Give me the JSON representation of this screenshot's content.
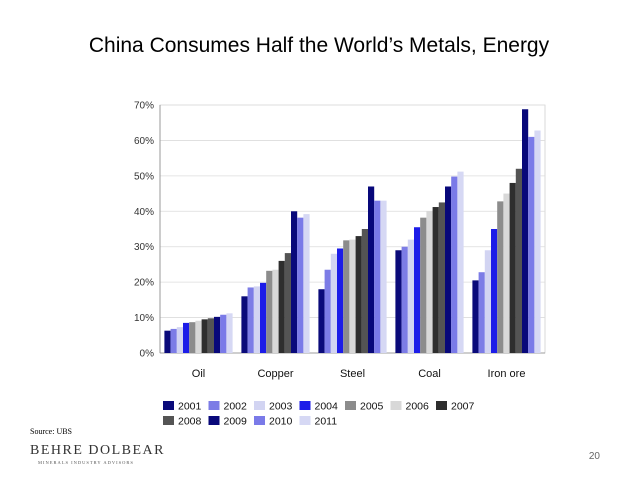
{
  "slide": {
    "title": "China Consumes Half the World’s Metals, Energy",
    "source": "Source: UBS",
    "logo_name": "BEHRE DOLBEAR",
    "logo_tagline": "MINERALS INDUSTRY ADVISORS",
    "page_number": "20"
  },
  "chart_data": {
    "type": "bar",
    "title": "",
    "xlabel": "",
    "ylabel": "",
    "ylim": [
      0,
      70
    ],
    "yticks": [
      "0%",
      "10%",
      "20%",
      "30%",
      "40%",
      "50%",
      "60%",
      "70%"
    ],
    "grid": true,
    "legend_position": "bottom",
    "categories": [
      "Oil",
      "Copper",
      "Steel",
      "Coal",
      "Iron ore"
    ],
    "series": [
      {
        "name": "2001",
        "color": "#0a0a7a",
        "values": [
          6.3,
          16,
          18,
          29,
          20.5
        ]
      },
      {
        "name": "2002",
        "color": "#7c7ce6",
        "values": [
          6.8,
          18.5,
          23.5,
          30,
          22.8
        ]
      },
      {
        "name": "2003",
        "color": "#d2d4f2",
        "values": [
          7.3,
          18.8,
          28,
          32,
          29
        ]
      },
      {
        "name": "2004",
        "color": "#1c1ce8",
        "values": [
          8.5,
          19.8,
          29.5,
          35.5,
          35
        ]
      },
      {
        "name": "2005",
        "color": "#8c8c8c",
        "values": [
          8.7,
          23.2,
          31.8,
          38.2,
          42.8
        ]
      },
      {
        "name": "2006",
        "color": "#d8d8d8",
        "values": [
          9.1,
          23.5,
          32,
          40,
          45
        ]
      },
      {
        "name": "2007",
        "color": "#2e2e2e",
        "values": [
          9.5,
          26,
          33,
          41.2,
          48
        ]
      },
      {
        "name": "2008",
        "color": "#545454",
        "values": [
          9.8,
          28.2,
          35,
          42.5,
          52
        ]
      },
      {
        "name": "2009",
        "color": "#08087a",
        "values": [
          10.2,
          40,
          47,
          47,
          68.8
        ]
      },
      {
        "name": "2010",
        "color": "#7a7ae8",
        "values": [
          10.8,
          38.2,
          43,
          49.8,
          61
        ]
      },
      {
        "name": "2011",
        "color": "#d6d8f4",
        "values": [
          11.2,
          39.2,
          43,
          51.2,
          62.8
        ]
      }
    ]
  }
}
